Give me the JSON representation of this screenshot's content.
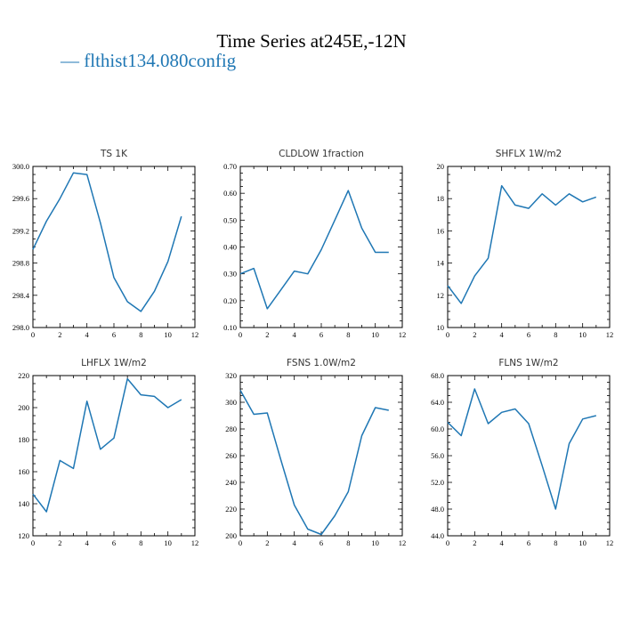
{
  "title": "Time Series at245E,-12N",
  "legend": {
    "label": "— flthist134.080config",
    "color": "#1f77b4"
  },
  "chart_data": [
    {
      "type": "line",
      "title": "TS   1K",
      "x": [
        0,
        1,
        2,
        3,
        4,
        5,
        6,
        7,
        8,
        9,
        10,
        11
      ],
      "series": [
        {
          "values": [
            298.97,
            299.32,
            299.6,
            299.92,
            299.9,
            299.3,
            298.62,
            298.32,
            298.2,
            298.45,
            298.82,
            299.38
          ]
        }
      ],
      "xlim": [
        0,
        12
      ],
      "ylim": [
        298.0,
        300.0
      ],
      "xticks": [
        "0",
        "2",
        "4",
        "6",
        "8",
        "10",
        "12"
      ],
      "yticks": [
        "298.0",
        "298.4",
        "298.8",
        "299.2",
        "299.6",
        "300.0"
      ]
    },
    {
      "type": "line",
      "title": "CLDLOW   1fraction",
      "x": [
        0,
        1,
        2,
        3,
        4,
        5,
        6,
        7,
        8,
        9,
        10,
        11
      ],
      "series": [
        {
          "values": [
            0.3,
            0.32,
            0.17,
            0.24,
            0.31,
            0.3,
            0.39,
            0.5,
            0.61,
            0.47,
            0.38,
            0.38
          ]
        }
      ],
      "xlim": [
        0,
        12
      ],
      "ylim": [
        0.1,
        0.7
      ],
      "xticks": [
        "0",
        "2",
        "4",
        "6",
        "8",
        "10",
        "12"
      ],
      "yticks": [
        "0.10",
        "0.20",
        "0.30",
        "0.40",
        "0.50",
        "0.60",
        "0.70"
      ]
    },
    {
      "type": "line",
      "title": "SHFLX   1W/m2",
      "x": [
        0,
        1,
        2,
        3,
        4,
        5,
        6,
        7,
        8,
        9,
        10,
        11
      ],
      "series": [
        {
          "values": [
            12.6,
            11.5,
            13.2,
            14.3,
            18.8,
            17.6,
            17.4,
            18.3,
            17.6,
            18.3,
            17.8,
            18.1
          ]
        }
      ],
      "xlim": [
        0,
        12
      ],
      "ylim": [
        10,
        20
      ],
      "xticks": [
        "0",
        "2",
        "4",
        "6",
        "8",
        "10",
        "12"
      ],
      "yticks": [
        "10",
        "12",
        "14",
        "16",
        "18",
        "20"
      ]
    },
    {
      "type": "line",
      "title": "LHFLX   1W/m2",
      "x": [
        0,
        1,
        2,
        3,
        4,
        5,
        6,
        7,
        8,
        9,
        10,
        11
      ],
      "series": [
        {
          "values": [
            146,
            135,
            167,
            162,
            204,
            174,
            181,
            218,
            208,
            207,
            200,
            205
          ]
        }
      ],
      "xlim": [
        0,
        12
      ],
      "ylim": [
        120,
        220
      ],
      "xticks": [
        "0",
        "2",
        "4",
        "6",
        "8",
        "10",
        "12"
      ],
      "yticks": [
        "120",
        "140",
        "160",
        "180",
        "200",
        "220"
      ]
    },
    {
      "type": "line",
      "title": "FSNS   1.0W/m2",
      "x": [
        0,
        1,
        2,
        3,
        4,
        5,
        6,
        7,
        8,
        9,
        10,
        11
      ],
      "series": [
        {
          "values": [
            309,
            291,
            292,
            257,
            223,
            205,
            201,
            215,
            233,
            275,
            296,
            294
          ]
        }
      ],
      "xlim": [
        0,
        12
      ],
      "ylim": [
        200,
        320
      ],
      "xticks": [
        "0",
        "2",
        "4",
        "6",
        "8",
        "10",
        "12"
      ],
      "yticks": [
        "200",
        "220",
        "240",
        "260",
        "280",
        "300",
        "320"
      ]
    },
    {
      "type": "line",
      "title": "FLNS   1W/m2",
      "x": [
        0,
        1,
        2,
        3,
        4,
        5,
        6,
        7,
        8,
        9,
        10,
        11
      ],
      "series": [
        {
          "values": [
            61.0,
            59.0,
            66.0,
            60.8,
            62.5,
            63.0,
            60.8,
            54.5,
            48.0,
            57.8,
            61.5,
            62.0
          ]
        }
      ],
      "xlim": [
        0,
        12
      ],
      "ylim": [
        44.0,
        68.0
      ],
      "xticks": [
        "0",
        "2",
        "4",
        "6",
        "8",
        "10",
        "12"
      ],
      "yticks": [
        "44.0",
        "48.0",
        "52.0",
        "56.0",
        "60.0",
        "64.0",
        "68.0"
      ]
    }
  ]
}
